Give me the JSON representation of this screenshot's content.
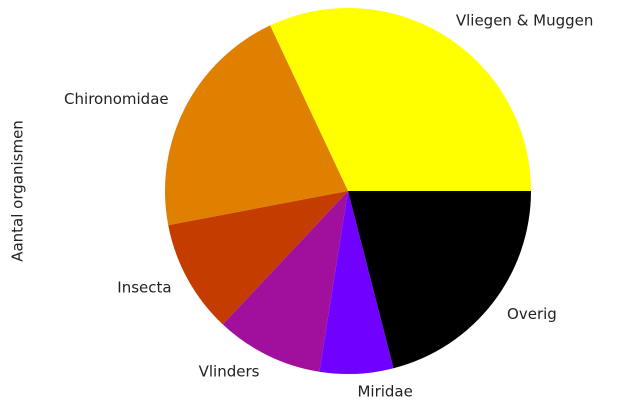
{
  "chart_data": {
    "type": "pie",
    "ylabel": "Aantal organismen",
    "categories": [
      "Vliegen & Muggen",
      "Chironomidae",
      "Insecta",
      "Vlinders",
      "Miridae",
      "Overig"
    ],
    "values": [
      32,
      21,
      10,
      9.5,
      6.5,
      21
    ],
    "colors": [
      "#ffff00",
      "#e08000",
      "#c43c00",
      "#a0109c",
      "#7000ff",
      "#000000"
    ]
  }
}
